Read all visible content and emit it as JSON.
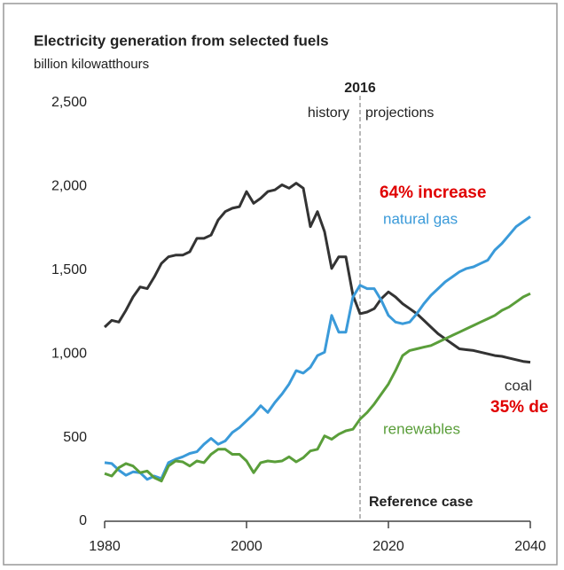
{
  "chart_data": {
    "type": "line",
    "title": "Electricity generation from selected fuels",
    "subtitle": "billion kilowatthours",
    "x": [
      1980,
      1981,
      1982,
      1983,
      1984,
      1985,
      1986,
      1987,
      1988,
      1989,
      1990,
      1991,
      1992,
      1993,
      1994,
      1995,
      1996,
      1997,
      1998,
      1999,
      2000,
      2001,
      2002,
      2003,
      2004,
      2005,
      2006,
      2007,
      2008,
      2009,
      2010,
      2011,
      2012,
      2013,
      2014,
      2015,
      2016,
      2017,
      2018,
      2019,
      2020,
      2021,
      2022,
      2023,
      2024,
      2025,
      2026,
      2027,
      2028,
      2029,
      2030,
      2031,
      2032,
      2033,
      2034,
      2035,
      2036,
      2037,
      2038,
      2039,
      2040
    ],
    "series": [
      {
        "name": "coal",
        "color": "#333333",
        "values": [
          1160,
          1200,
          1190,
          1260,
          1340,
          1400,
          1390,
          1460,
          1540,
          1580,
          1590,
          1590,
          1610,
          1690,
          1690,
          1710,
          1800,
          1850,
          1870,
          1880,
          1970,
          1900,
          1930,
          1970,
          1980,
          2010,
          1990,
          2020,
          1990,
          1760,
          1850,
          1730,
          1510,
          1580,
          1580,
          1350,
          1240,
          1250,
          1270,
          1330,
          1370,
          1340,
          1300,
          1270,
          1240,
          1200,
          1160,
          1120,
          1090,
          1060,
          1030,
          1025,
          1020,
          1010,
          1000,
          990,
          985,
          975,
          965,
          955,
          950
        ]
      },
      {
        "name": "natural gas",
        "color": "#3a9ad9",
        "values": [
          350,
          345,
          305,
          275,
          295,
          290,
          250,
          270,
          255,
          350,
          370,
          385,
          405,
          415,
          460,
          495,
          460,
          480,
          530,
          560,
          600,
          640,
          690,
          650,
          710,
          760,
          820,
          900,
          885,
          920,
          990,
          1010,
          1230,
          1130,
          1130,
          1340,
          1410,
          1390,
          1390,
          1320,
          1230,
          1190,
          1180,
          1190,
          1240,
          1300,
          1350,
          1390,
          1430,
          1460,
          1490,
          1510,
          1520,
          1540,
          1560,
          1620,
          1660,
          1710,
          1760,
          1790,
          1820
        ]
      },
      {
        "name": "renewables",
        "color": "#5a9e3a",
        "values": [
          285,
          270,
          320,
          345,
          330,
          290,
          300,
          260,
          240,
          330,
          360,
          355,
          330,
          360,
          350,
          400,
          430,
          430,
          400,
          400,
          360,
          290,
          350,
          360,
          355,
          360,
          385,
          355,
          380,
          420,
          430,
          510,
          490,
          520,
          540,
          550,
          610,
          650,
          700,
          760,
          820,
          900,
          990,
          1020,
          1030,
          1040,
          1050,
          1070,
          1090,
          1110,
          1130,
          1150,
          1170,
          1190,
          1210,
          1230,
          1260,
          1280,
          1310,
          1340,
          1360
        ]
      }
    ],
    "xlim": [
      1980,
      2040
    ],
    "xticks": [
      1980,
      2000,
      2020,
      2040
    ],
    "ylim": [
      0,
      2500
    ],
    "yticks": [
      0,
      500,
      {
        "value": 1000,
        "label": "1,000"
      },
      {
        "value": 1500,
        "label": "1,500"
      },
      {
        "value": 2000,
        "label": "2,000"
      },
      {
        "value": 2500,
        "label": "2,500"
      }
    ],
    "projection_start": {
      "value": 2016,
      "label": "2016"
    },
    "history_label": "history",
    "projections_label": "projections",
    "annotations": [
      "64% increase",
      "35% de"
    ],
    "annotation_color": "#e00000",
    "case_label": "Reference case"
  }
}
